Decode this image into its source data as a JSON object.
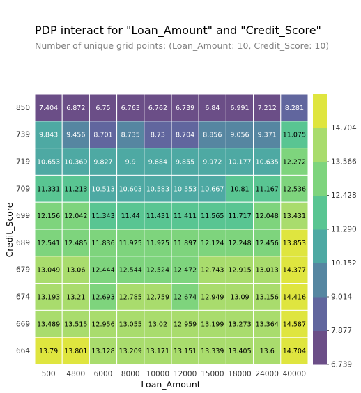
{
  "chart_data": {
    "type": "heatmap",
    "title": "PDP interact for \"Loan_Amount\" and \"Credit_Score\"",
    "subtitle": "Number of unique grid points: (Loan_Amount: 10, Credit_Score: 10)",
    "xlabel": "Loan_Amount",
    "ylabel": "Credit_Score",
    "x": [
      "500",
      "4800",
      "6000",
      "8000",
      "10000",
      "12000",
      "15000",
      "18000",
      "24000",
      "40000"
    ],
    "y": [
      "850",
      "739",
      "719",
      "709",
      "699",
      "689",
      "679",
      "674",
      "669",
      "664"
    ],
    "values": [
      [
        7.404,
        6.872,
        6.75,
        6.763,
        6.762,
        6.739,
        6.84,
        6.991,
        7.212,
        8.281
      ],
      [
        9.843,
        9.456,
        8.701,
        8.735,
        8.73,
        8.704,
        8.856,
        9.056,
        9.371,
        11.075
      ],
      [
        10.653,
        10.369,
        9.827,
        9.9,
        9.884,
        9.855,
        9.972,
        10.177,
        10.635,
        12.272
      ],
      [
        11.331,
        11.213,
        10.513,
        10.603,
        10.583,
        10.553,
        10.667,
        10.81,
        11.167,
        12.536
      ],
      [
        12.156,
        12.042,
        11.343,
        11.44,
        11.431,
        11.411,
        11.565,
        11.717,
        12.048,
        13.431
      ],
      [
        12.541,
        12.485,
        11.836,
        11.925,
        11.925,
        11.897,
        12.124,
        12.248,
        12.456,
        13.853
      ],
      [
        13.049,
        13.06,
        12.444,
        12.544,
        12.524,
        12.472,
        12.743,
        12.915,
        13.013,
        14.377
      ],
      [
        13.193,
        13.21,
        12.693,
        12.785,
        12.759,
        12.674,
        12.949,
        13.09,
        13.156,
        14.416
      ],
      [
        13.489,
        13.515,
        12.956,
        13.055,
        13.02,
        12.959,
        13.199,
        13.273,
        13.364,
        14.587
      ],
      [
        13.79,
        13.801,
        13.128,
        13.209,
        13.171,
        13.151,
        13.339,
        13.405,
        13.6,
        14.704
      ]
    ],
    "value_labels": [
      [
        "7.404",
        "6.872",
        "6.75",
        "6.763",
        "6.762",
        "6.739",
        "6.84",
        "6.991",
        "7.212",
        "8.281"
      ],
      [
        "9.843",
        "9.456",
        "8.701",
        "8.735",
        "8.73",
        "8.704",
        "8.856",
        "9.056",
        "9.371",
        "11.075"
      ],
      [
        "10.653",
        "10.369",
        "9.827",
        "9.9",
        "9.884",
        "9.855",
        "9.972",
        "10.177",
        "10.635",
        "12.272"
      ],
      [
        "11.331",
        "11.213",
        "10.513",
        "10.603",
        "10.583",
        "10.553",
        "10.667",
        "10.81",
        "11.167",
        "12.536"
      ],
      [
        "12.156",
        "12.042",
        "11.343",
        "11.44",
        "11.431",
        "11.411",
        "11.565",
        "11.717",
        "12.048",
        "13.431"
      ],
      [
        "12.541",
        "12.485",
        "11.836",
        "11.925",
        "11.925",
        "11.897",
        "12.124",
        "12.248",
        "12.456",
        "13.853"
      ],
      [
        "13.049",
        "13.06",
        "12.444",
        "12.544",
        "12.524",
        "12.472",
        "12.743",
        "12.915",
        "13.013",
        "14.377"
      ],
      [
        "13.193",
        "13.21",
        "12.693",
        "12.785",
        "12.759",
        "12.674",
        "12.949",
        "13.09",
        "13.156",
        "14.416"
      ],
      [
        "13.489",
        "13.515",
        "12.956",
        "13.055",
        "13.02",
        "12.959",
        "13.199",
        "13.273",
        "13.364",
        "14.587"
      ],
      [
        "13.79",
        "13.801",
        "13.128",
        "13.209",
        "13.171",
        "13.151",
        "13.339",
        "13.405",
        "13.6",
        "14.704"
      ]
    ],
    "colorbar": {
      "min": 6.739,
      "max": 14.704,
      "ticks": [
        "6.739",
        "7.877",
        "9.014",
        "10.152",
        "11.290",
        "12.428",
        "13.566",
        "14.704"
      ],
      "colors": [
        "#6b4e87",
        "#61669e",
        "#5686a1",
        "#4ea9a3",
        "#59c592",
        "#7ed47d",
        "#a9dc6d",
        "#dfe53f"
      ]
    },
    "grid": false
  }
}
